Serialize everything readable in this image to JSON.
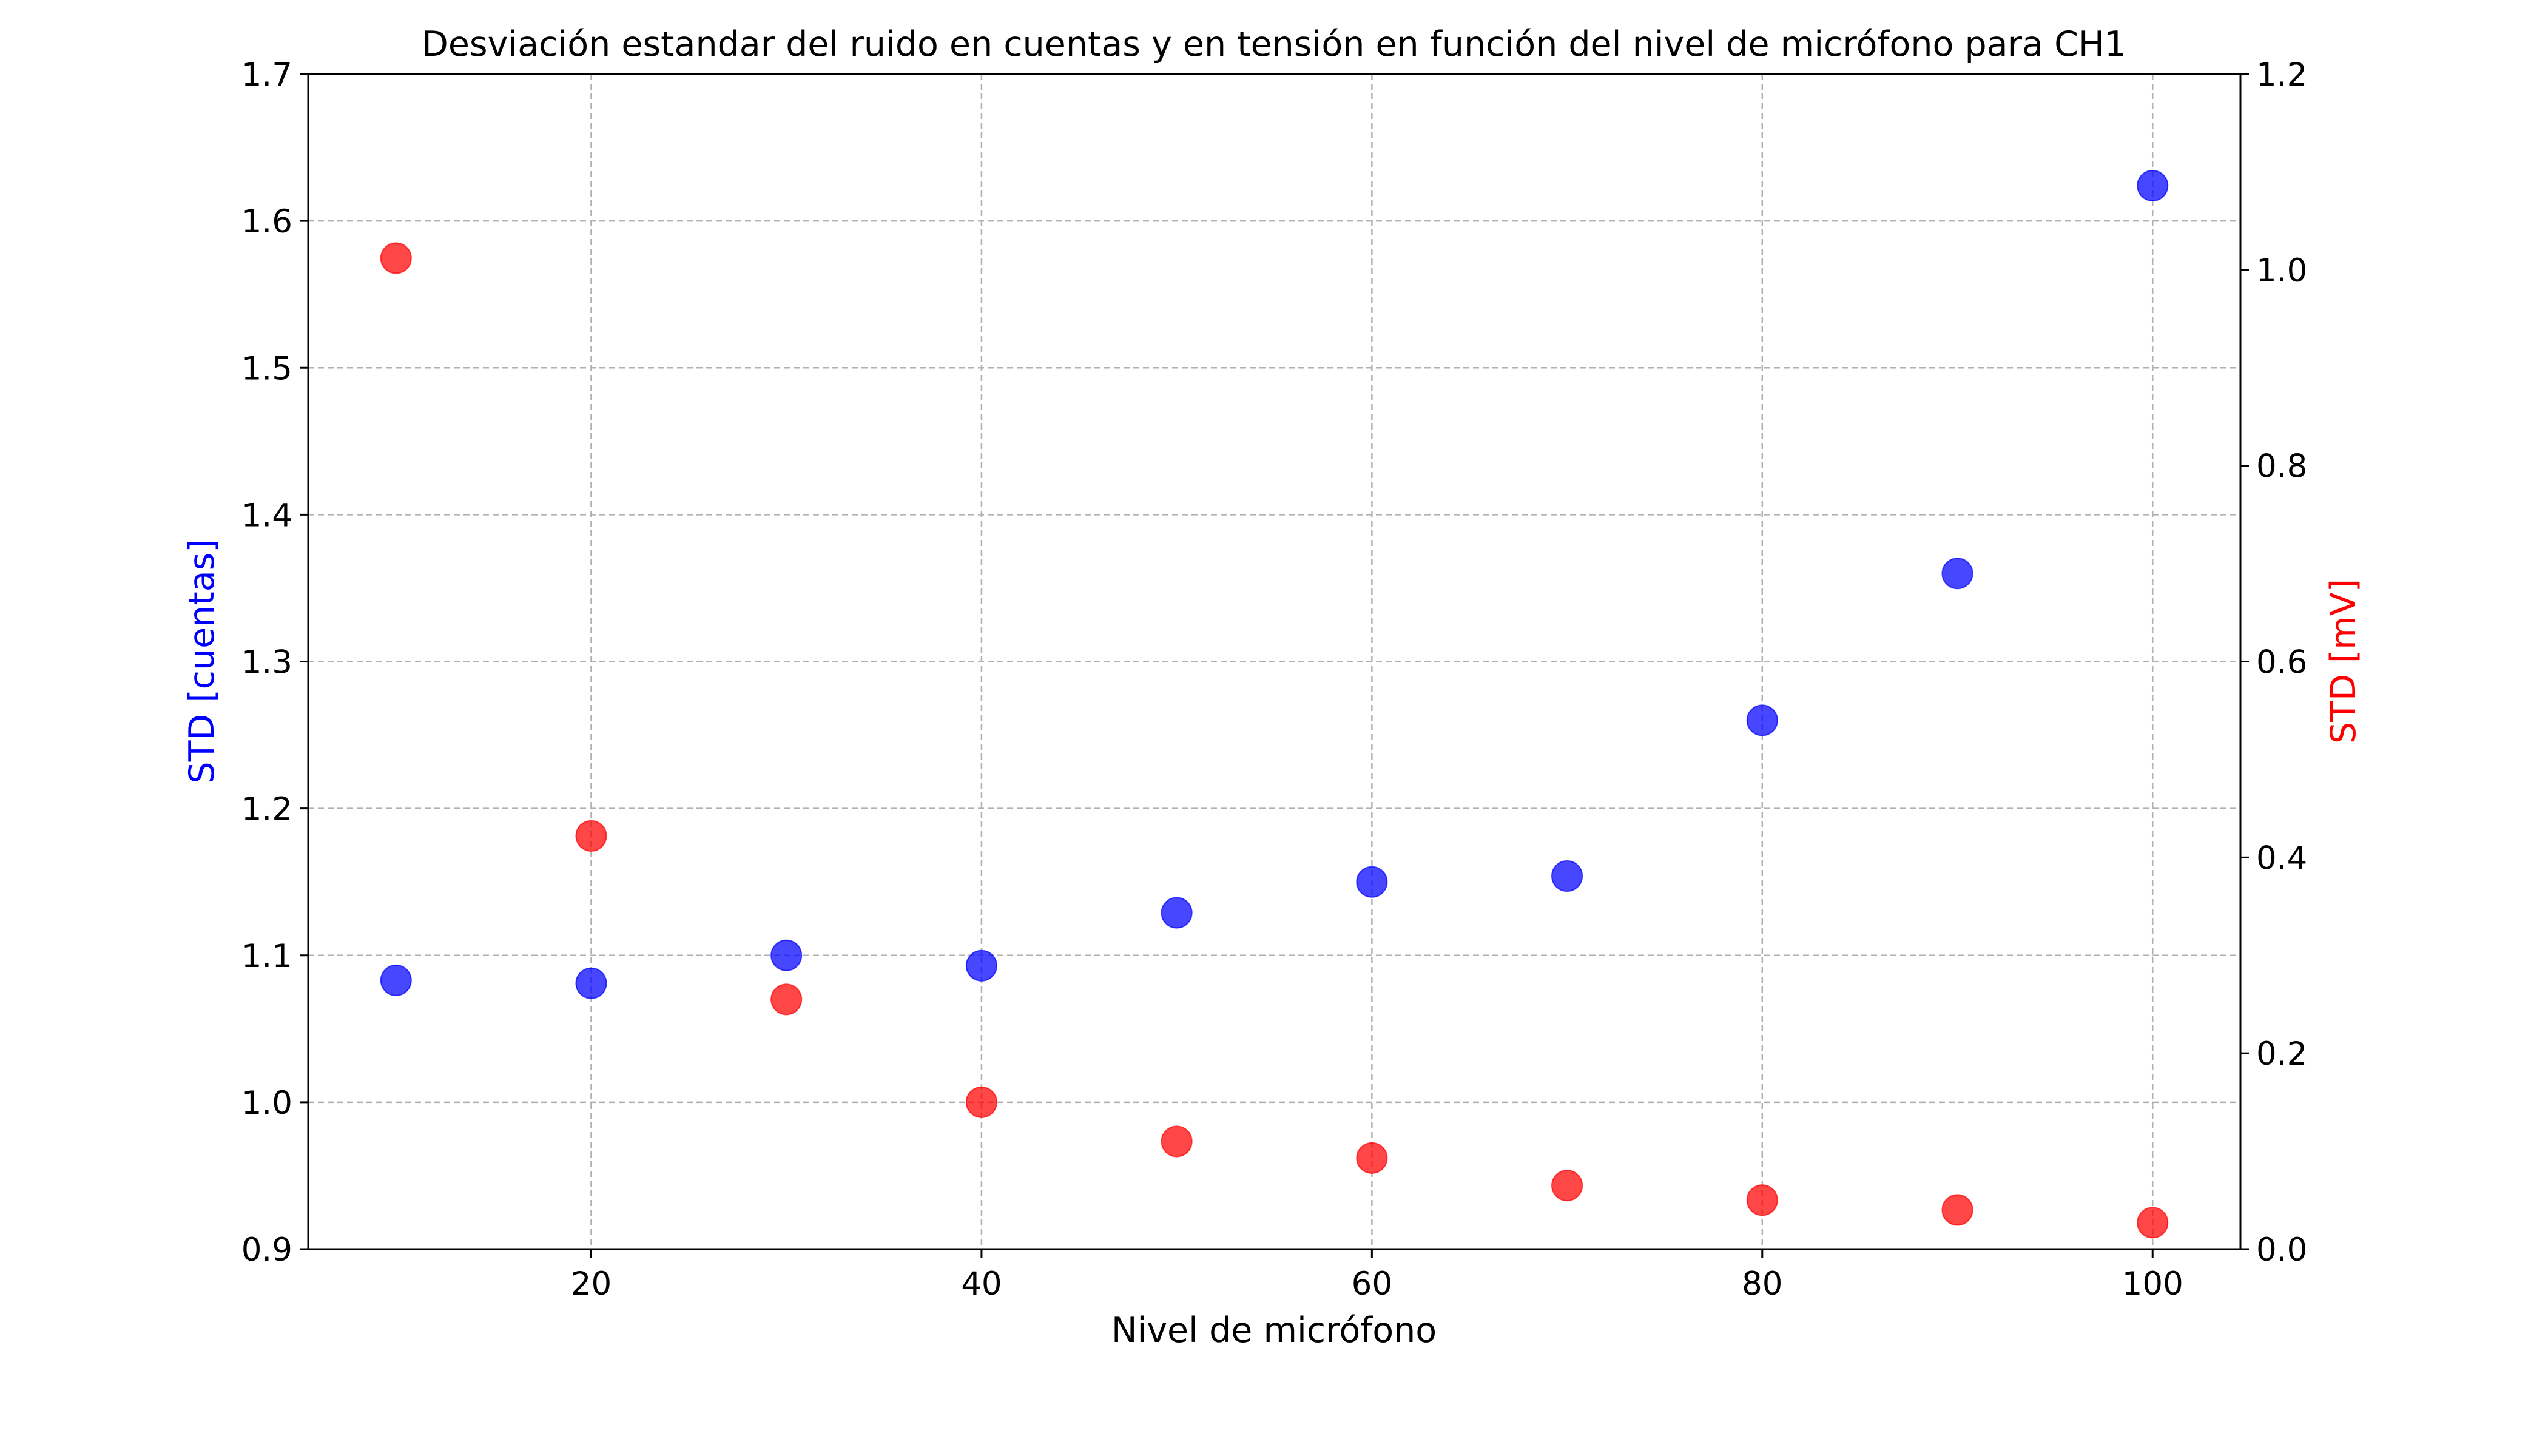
{
  "chart_data": {
    "type": "scatter",
    "title": "Desviación estandar del ruido en cuentas y en tensión en función del nivel de micrófono para CH1",
    "xlabel": "Nivel de micrófono",
    "ylabel_left": "STD [cuentas]",
    "ylabel_right": "STD [mV]",
    "xlim": [
      5.5,
      104.5
    ],
    "ylim_left": [
      0.9,
      1.7
    ],
    "ylim_right": [
      0.0,
      1.2
    ],
    "x_ticks": [
      20,
      40,
      60,
      80,
      100
    ],
    "x_tick_labels": [
      "20",
      "40",
      "60",
      "80",
      "100"
    ],
    "y_left_ticks": [
      0.9,
      1.0,
      1.1,
      1.2,
      1.3,
      1.4,
      1.5,
      1.6,
      1.7
    ],
    "y_left_tick_labels": [
      "0.9",
      "1.0",
      "1.1",
      "1.2",
      "1.3",
      "1.4",
      "1.5",
      "1.6",
      "1.7"
    ],
    "y_right_ticks": [
      0.0,
      0.2,
      0.4,
      0.6,
      0.8,
      1.0,
      1.2
    ],
    "y_right_tick_labels": [
      "0.0",
      "0.2",
      "0.4",
      "0.6",
      "0.8",
      "1.0",
      "1.2"
    ],
    "grid": true,
    "x": [
      10,
      20,
      30,
      40,
      50,
      60,
      70,
      80,
      90,
      100
    ],
    "series": [
      {
        "axis": "left",
        "color": "#0000ff",
        "values": [
          1.083,
          1.081,
          1.1,
          1.093,
          1.129,
          1.15,
          1.154,
          1.26,
          1.36,
          1.624
        ]
      },
      {
        "axis": "right",
        "color": "#ff0000",
        "values": [
          1.012,
          0.422,
          0.255,
          0.15,
          0.11,
          0.093,
          0.065,
          0.05,
          0.04,
          0.027
        ]
      }
    ]
  }
}
